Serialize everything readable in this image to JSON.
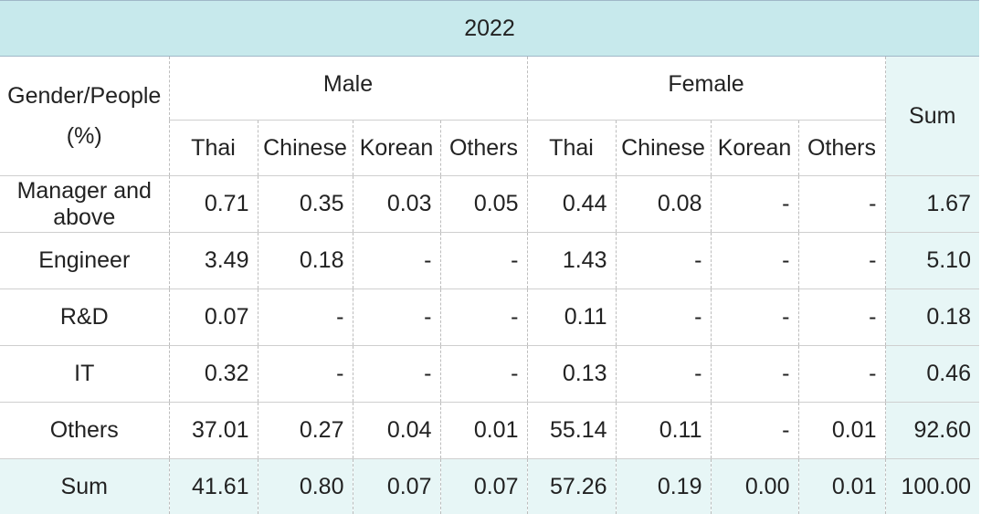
{
  "year": "2022",
  "header": {
    "row_label_line1": "Gender/People",
    "row_label_line2": "(%)",
    "male": "Male",
    "female": "Female",
    "sum": "Sum",
    "nationalities": [
      "Thai",
      "Chinese",
      "Korean",
      "Others",
      "Thai",
      "Chinese",
      "Korean",
      "Others"
    ]
  },
  "rows": [
    {
      "label": "Manager and above",
      "values": [
        "0.71",
        "0.35",
        "0.03",
        "0.05",
        "0.44",
        "0.08",
        "-",
        "-",
        "1.67"
      ]
    },
    {
      "label": "Engineer",
      "values": [
        "3.49",
        "0.18",
        "-",
        "-",
        "1.43",
        "-",
        "-",
        "-",
        "5.10"
      ]
    },
    {
      "label": "R&D",
      "values": [
        "0.07",
        "-",
        "-",
        "-",
        "0.11",
        "-",
        "-",
        "-",
        "0.18"
      ]
    },
    {
      "label": "IT",
      "values": [
        "0.32",
        "-",
        "-",
        "-",
        "0.13",
        "-",
        "-",
        "-",
        "0.46"
      ]
    },
    {
      "label": "Others",
      "values": [
        "37.01",
        "0.27",
        "0.04",
        "0.01",
        "55.14",
        "0.11",
        "-",
        "0.01",
        "92.60"
      ]
    }
  ],
  "total": {
    "label": "Sum",
    "values": [
      "41.61",
      "0.80",
      "0.07",
      "0.07",
      "57.26",
      "0.19",
      "0.00",
      "0.01",
      "100.00"
    ]
  }
}
